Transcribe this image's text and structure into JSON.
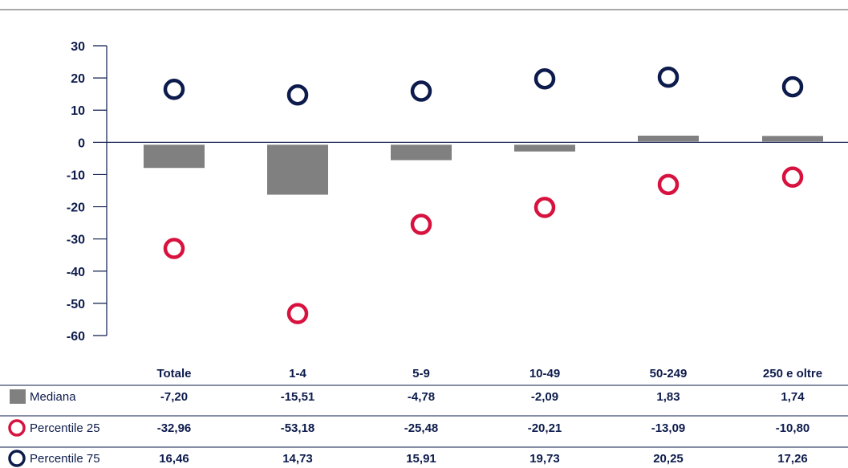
{
  "chart_data": {
    "type": "bar",
    "categories": [
      "Totale",
      "1-4",
      "5-9",
      "10-49",
      "50-249",
      "250 e oltre"
    ],
    "ylim": [
      -60,
      30
    ],
    "yticks": [
      "30",
      "20",
      "10",
      "0",
      "-10",
      "-20",
      "-30",
      "-40",
      "-50",
      "-60"
    ],
    "grid": false,
    "series": [
      {
        "name": "Mediana",
        "mark": "bar",
        "color": "#808080",
        "values": [
          -7.2,
          -15.51,
          -4.78,
          -2.09,
          1.83,
          1.74
        ],
        "labels": [
          "-7,20",
          "-15,51",
          "-4,78",
          "-2,09",
          "1,83",
          "1,74"
        ]
      },
      {
        "name": "Percentile 25",
        "mark": "ring",
        "color": "#d7123f",
        "values": [
          -32.96,
          -53.18,
          -25.48,
          -20.21,
          -13.09,
          -10.8
        ],
        "labels": [
          "-32,96",
          "-53,18",
          "-25,48",
          "-20,21",
          "-13,09",
          "-10,80"
        ]
      },
      {
        "name": "Percentile 75",
        "mark": "ring",
        "color": "#0d1b4c",
        "values": [
          16.46,
          14.73,
          15.91,
          19.73,
          20.25,
          17.26
        ],
        "labels": [
          "16,46",
          "14,73",
          "15,91",
          "19,73",
          "20,25",
          "17,26"
        ]
      }
    ]
  }
}
